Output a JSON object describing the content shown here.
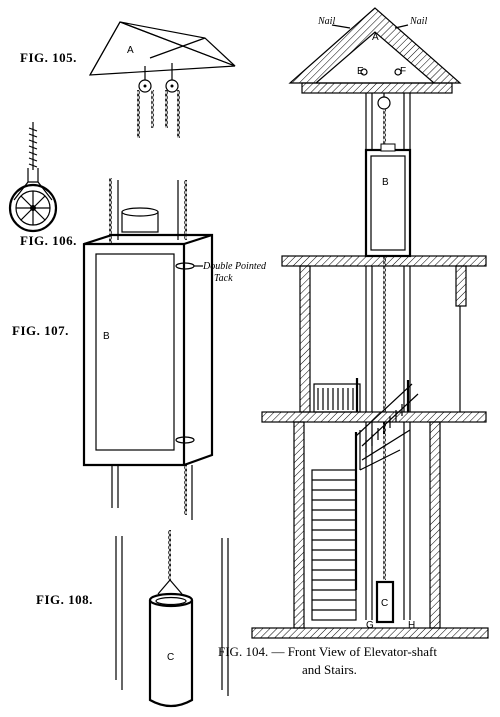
{
  "figures": {
    "fig105": "FIG. 105.",
    "fig106": "FIG. 106.",
    "fig107": "FIG. 107.",
    "fig108": "FIG. 108."
  },
  "fig105": {
    "part_label": "A"
  },
  "fig107": {
    "part_label": "B",
    "tack_label_line1": "Double Pointed",
    "tack_label_line2": "Tack"
  },
  "fig108": {
    "part_label": "C"
  },
  "fig104": {
    "nail_left": "Nail",
    "nail_right": "Nail",
    "label_a": "A",
    "label_e": "E",
    "label_f": "F",
    "label_b": "B",
    "label_c": "C",
    "label_g": "G",
    "label_h": "H",
    "caption_line1": "FIG. 104. — Front View of Elevator-shaft",
    "caption_line2": "and Stairs."
  }
}
